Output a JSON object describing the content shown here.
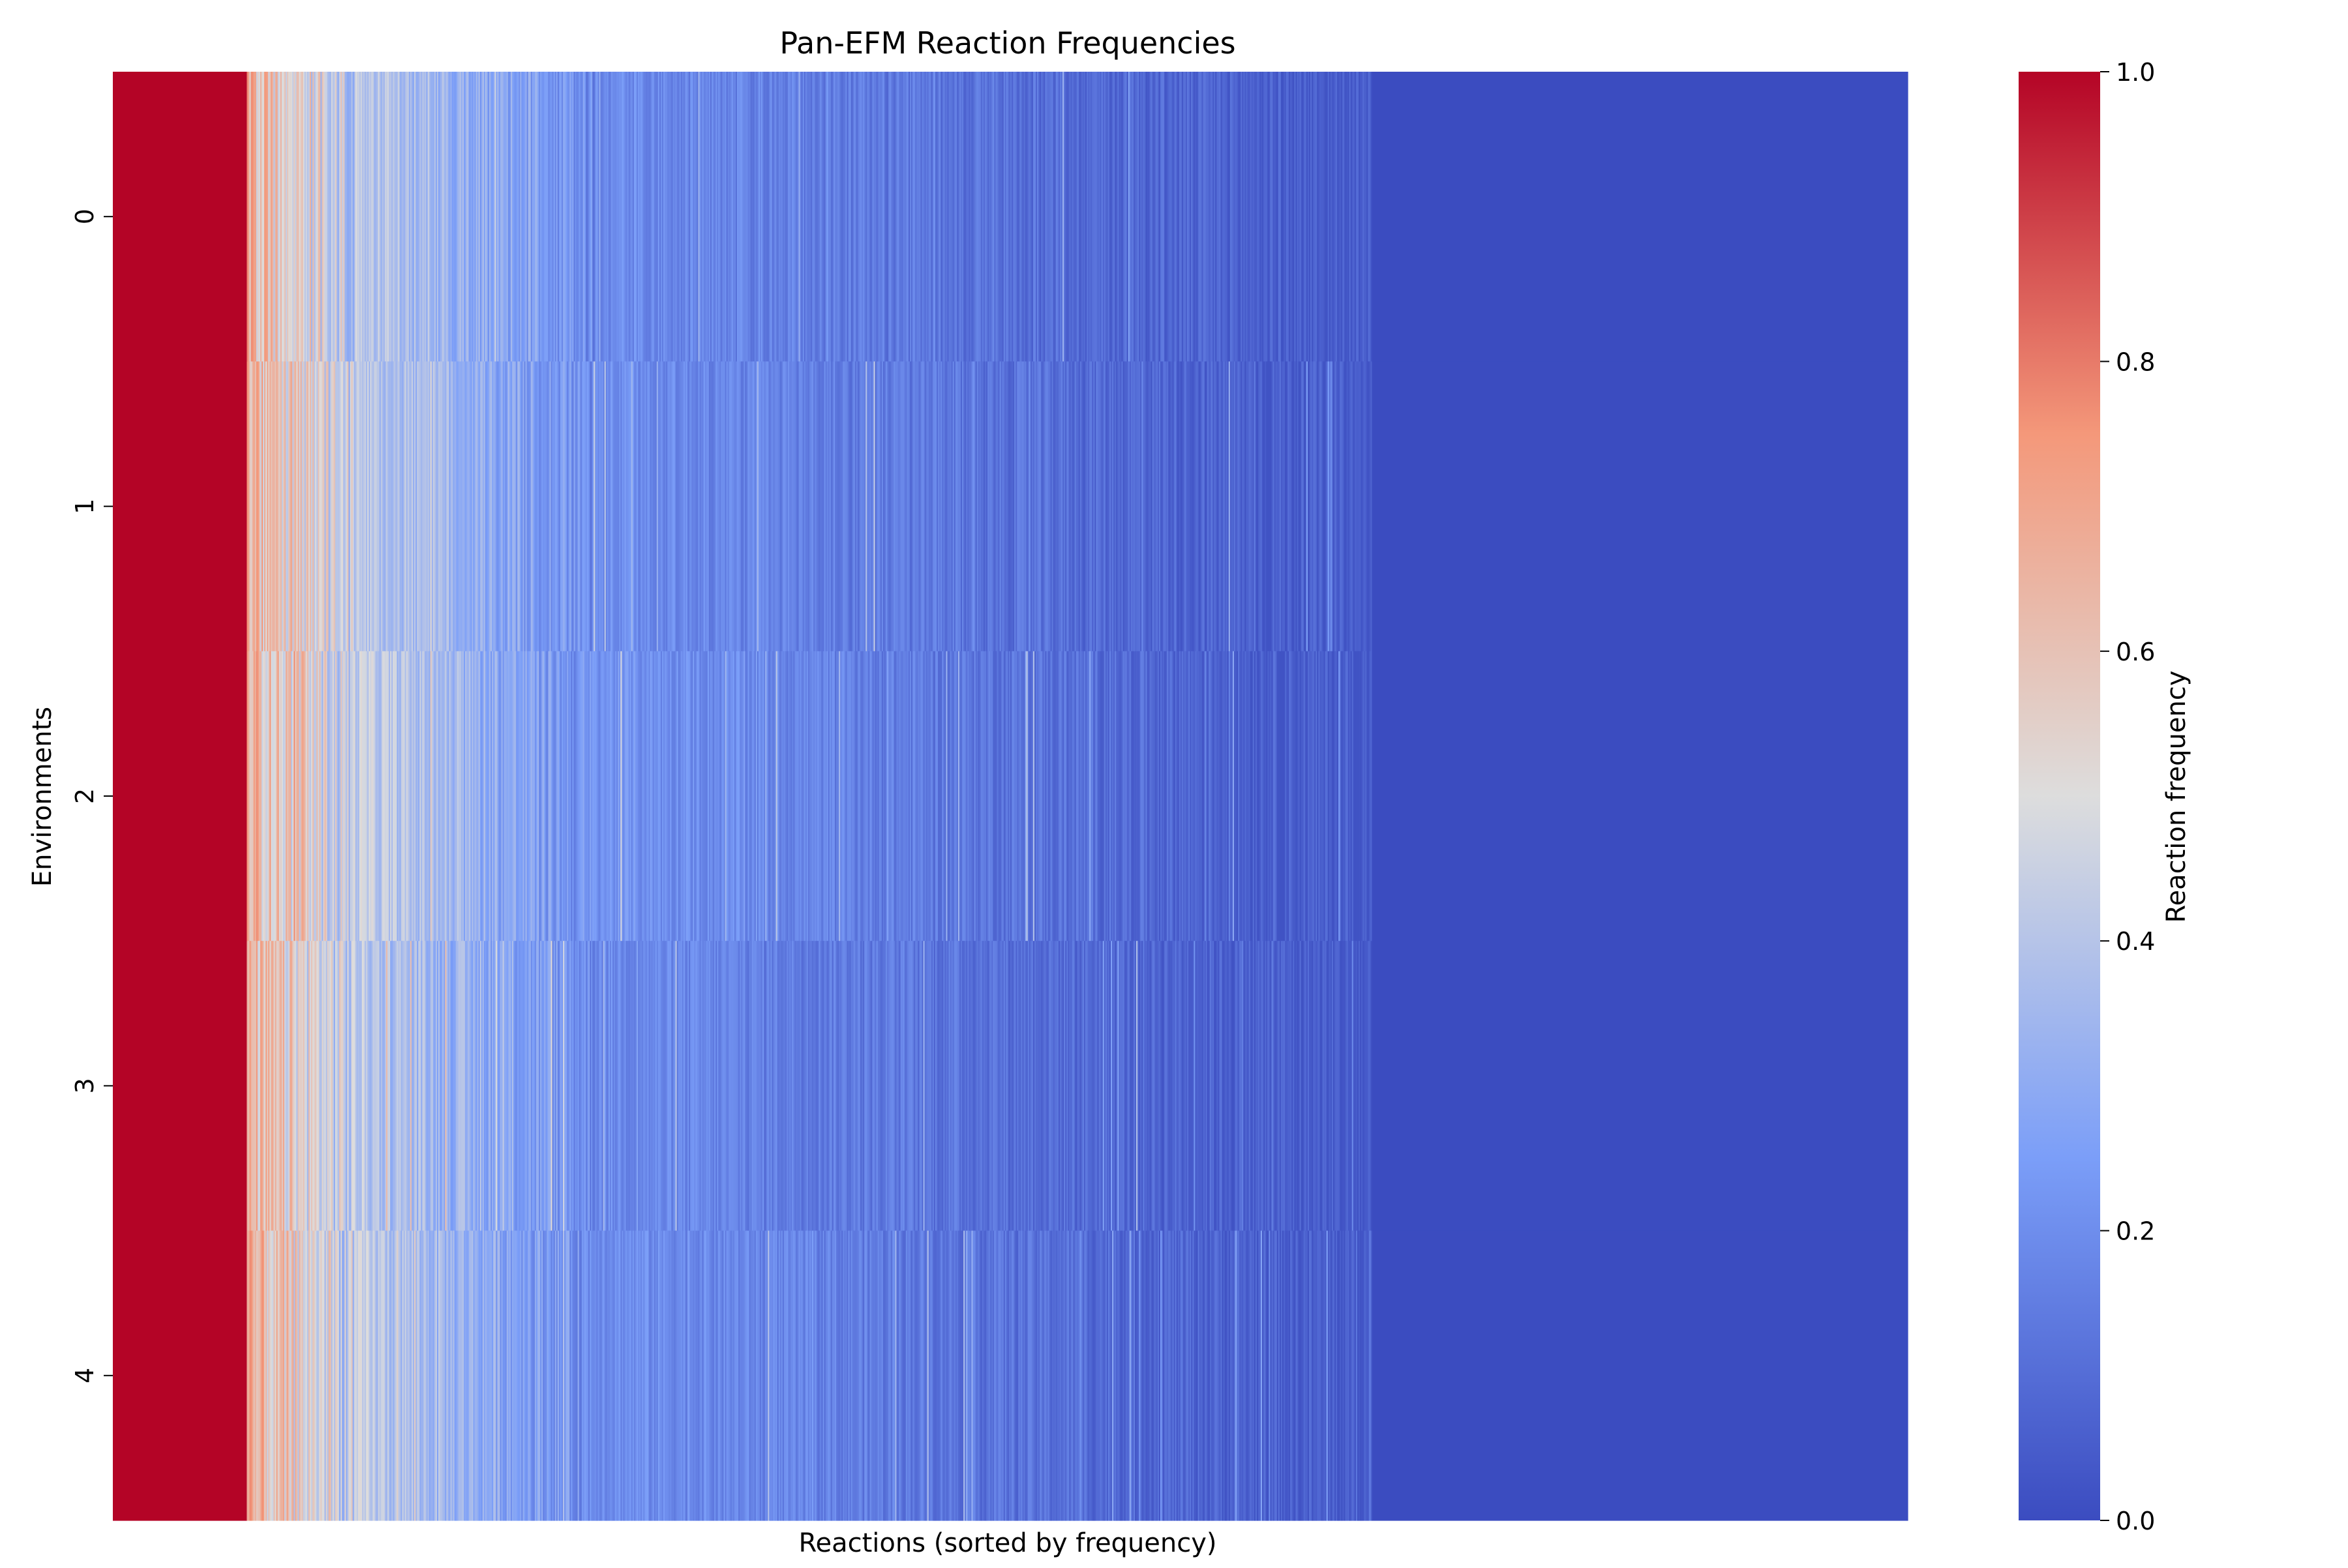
{
  "chart_data": {
    "type": "heatmap",
    "title": "Pan-EFM Reaction Frequencies",
    "xlabel": "Reactions (sorted by frequency)",
    "ylabel": "Environments",
    "rows": [
      "0",
      "1",
      "2",
      "3",
      "4"
    ],
    "x_tick_labels": [],
    "value_range": [
      0,
      1
    ],
    "colormap": "coolwarm",
    "colorbar": {
      "label": "Reaction frequency",
      "ticks": [
        "0.0",
        "0.2",
        "0.4",
        "0.6",
        "0.8",
        "1.0"
      ],
      "tick_values": [
        0,
        0.2,
        0.4,
        0.6,
        0.8,
        1.0
      ],
      "placement": "right"
    },
    "num_reactions": 1340,
    "column_profile": [
      {
        "from": 0,
        "to": 100,
        "value": 1.0
      },
      {
        "from": 100,
        "to": 180,
        "start": 0.62,
        "end": 0.42,
        "noise": 0.16
      },
      {
        "from": 180,
        "to": 360,
        "start": 0.42,
        "end": 0.2,
        "noise": 0.09
      },
      {
        "from": 360,
        "to": 940,
        "start": 0.2,
        "end": 0.04,
        "noise": 0.06
      },
      {
        "from": 940,
        "to": 1340,
        "value": 0.0
      }
    ],
    "grid": false,
    "legend": "none"
  }
}
